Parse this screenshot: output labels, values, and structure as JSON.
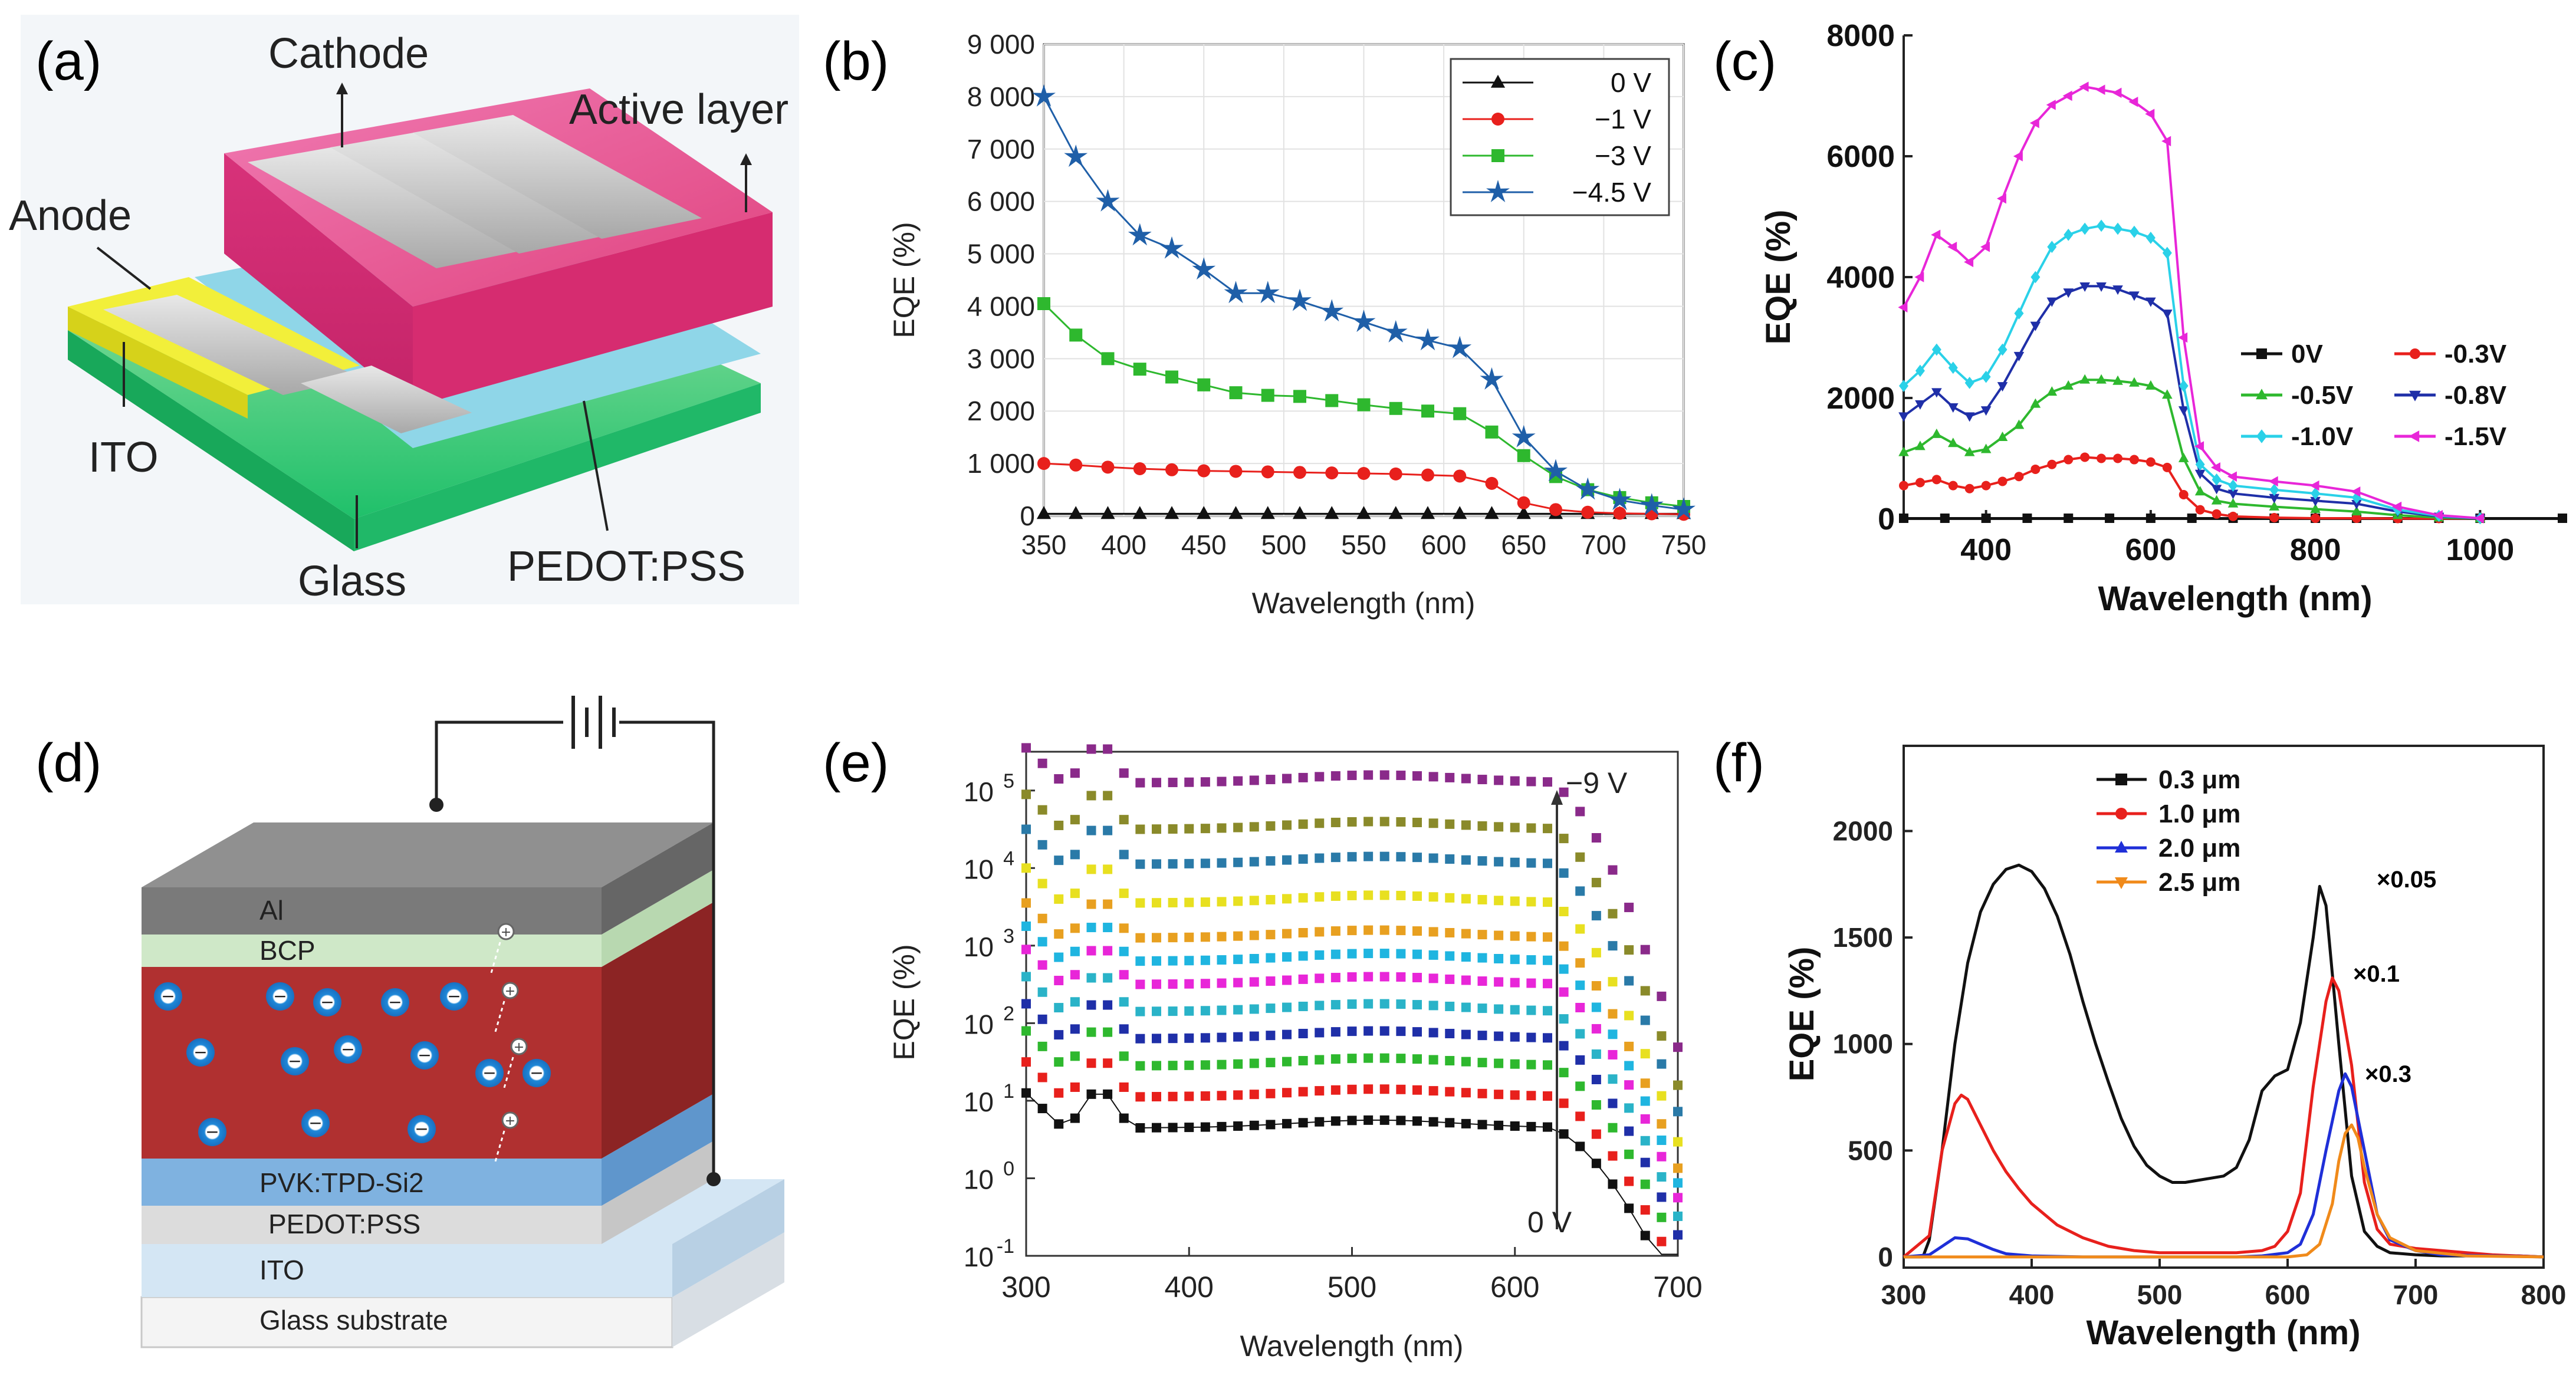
{
  "panel_labels": [
    "(a)",
    "(b)",
    "(c)",
    "(d)",
    "(e)",
    "(f)"
  ],
  "device_a": {
    "labels": [
      "Cathode",
      "Active layer",
      "Anode",
      "ITO",
      "Glass",
      "PEDOT:PSS"
    ]
  },
  "device_d": {
    "layers": [
      "Al",
      "BCP",
      "PVK:TPD-Si2",
      "PEDOT:PSS",
      "ITO",
      "Glass substrate"
    ],
    "minus_sign": "−",
    "plus_sign": "+"
  },
  "chart_data": [
    {
      "panel": "(b)",
      "type": "line",
      "xlabel": "Wavelength (nm)",
      "ylabel": "EQE (%)",
      "xlim": [
        350,
        750
      ],
      "ylim": [
        0,
        9000
      ],
      "xticks": [
        350,
        400,
        450,
        500,
        550,
        600,
        650,
        700,
        750
      ],
      "yticks": [
        0,
        1000,
        2000,
        3000,
        4000,
        5000,
        6000,
        7000,
        8000,
        9000
      ],
      "ytick_labels": [
        "0",
        "1 000",
        "2 000",
        "3 000",
        "4 000",
        "5 000",
        "6 000",
        "7 000",
        "8 000",
        "9 000"
      ],
      "legend_position": "top-right",
      "series": [
        {
          "name": "0 V",
          "color": "#111111",
          "marker": "triangle",
          "x": [
            350,
            370,
            390,
            410,
            430,
            450,
            470,
            490,
            510,
            530,
            550,
            570,
            590,
            610,
            630,
            650,
            670,
            690,
            710,
            730,
            750
          ],
          "y": [
            40,
            40,
            40,
            40,
            40,
            40,
            40,
            40,
            40,
            40,
            40,
            40,
            40,
            40,
            40,
            40,
            40,
            40,
            40,
            40,
            40
          ]
        },
        {
          "name": "−1 V",
          "color": "#e8201c",
          "marker": "circle",
          "x": [
            350,
            370,
            390,
            410,
            430,
            450,
            470,
            490,
            510,
            530,
            550,
            570,
            590,
            610,
            630,
            650,
            670,
            690,
            710,
            730,
            750
          ],
          "y": [
            1000,
            970,
            930,
            900,
            880,
            860,
            850,
            840,
            830,
            820,
            810,
            800,
            780,
            760,
            620,
            250,
            120,
            70,
            50,
            40,
            30
          ]
        },
        {
          "name": "−3 V",
          "color": "#2eb82e",
          "marker": "square",
          "x": [
            350,
            370,
            390,
            410,
            430,
            450,
            470,
            490,
            510,
            530,
            550,
            570,
            590,
            610,
            630,
            650,
            670,
            690,
            710,
            730,
            750
          ],
          "y": [
            4050,
            3450,
            3000,
            2800,
            2650,
            2500,
            2350,
            2300,
            2280,
            2200,
            2120,
            2050,
            2000,
            1950,
            1600,
            1150,
            750,
            500,
            350,
            250,
            180
          ]
        },
        {
          "name": "−4.5 V",
          "color": "#1f5fa8",
          "marker": "star",
          "x": [
            350,
            370,
            390,
            410,
            430,
            450,
            470,
            490,
            510,
            530,
            550,
            570,
            590,
            610,
            630,
            650,
            670,
            690,
            710,
            730,
            750
          ],
          "y": [
            8000,
            6850,
            6000,
            5350,
            5100,
            4700,
            4250,
            4250,
            4100,
            3900,
            3700,
            3500,
            3350,
            3200,
            2600,
            1500,
            850,
            500,
            300,
            200,
            120
          ]
        }
      ]
    },
    {
      "panel": "(c)",
      "type": "line",
      "xlabel": "Wavelength (nm)",
      "ylabel": "EQE (%)",
      "xlim": [
        300,
        1100
      ],
      "ylim": [
        0,
        8000
      ],
      "xticks": [
        400,
        600,
        800,
        1000
      ],
      "yticks": [
        0,
        2000,
        4000,
        6000,
        8000
      ],
      "legend_position": "right",
      "series": [
        {
          "name": "0V",
          "color": "#111111",
          "marker": "square",
          "x": [
            300,
            350,
            400,
            450,
            500,
            550,
            600,
            650,
            700,
            750,
            800,
            850,
            900,
            950,
            1000,
            1100
          ],
          "y": [
            10,
            10,
            10,
            10,
            10,
            10,
            10,
            10,
            10,
            10,
            10,
            10,
            10,
            10,
            10,
            10
          ]
        },
        {
          "name": "-0.3V",
          "color": "#e8201c",
          "marker": "circle",
          "x": [
            300,
            320,
            340,
            360,
            380,
            400,
            420,
            440,
            460,
            480,
            500,
            520,
            540,
            560,
            580,
            600,
            620,
            640,
            660,
            680,
            700,
            750,
            800,
            850,
            900,
            950,
            1000
          ],
          "y": [
            550,
            600,
            650,
            550,
            500,
            550,
            620,
            700,
            820,
            900,
            980,
            1020,
            1000,
            1000,
            980,
            940,
            850,
            400,
            150,
            80,
            40,
            20,
            10,
            10,
            5,
            5,
            5
          ]
        },
        {
          "name": "-0.5V",
          "color": "#2eb82e",
          "marker": "triangle",
          "x": [
            300,
            320,
            340,
            360,
            380,
            400,
            420,
            440,
            460,
            480,
            500,
            520,
            540,
            560,
            580,
            600,
            620,
            640,
            660,
            680,
            700,
            750,
            800,
            850,
            900,
            950,
            1000
          ],
          "y": [
            1100,
            1200,
            1400,
            1250,
            1100,
            1150,
            1350,
            1550,
            1900,
            2100,
            2200,
            2300,
            2300,
            2280,
            2250,
            2200,
            2050,
            1000,
            450,
            300,
            250,
            200,
            160,
            120,
            60,
            20,
            5
          ]
        },
        {
          "name": "-0.8V",
          "color": "#1f2fa8",
          "marker": "triangle-down",
          "x": [
            300,
            320,
            340,
            360,
            380,
            400,
            420,
            440,
            460,
            480,
            500,
            520,
            540,
            560,
            580,
            600,
            620,
            640,
            660,
            680,
            700,
            750,
            800,
            850,
            900,
            950,
            1000
          ],
          "y": [
            1700,
            1900,
            2100,
            1850,
            1700,
            1800,
            2200,
            2700,
            3200,
            3600,
            3750,
            3850,
            3850,
            3800,
            3700,
            3600,
            3400,
            1800,
            750,
            500,
            420,
            350,
            300,
            250,
            120,
            40,
            5
          ]
        },
        {
          "name": "-1.0V",
          "color": "#2ad1e8",
          "marker": "diamond",
          "x": [
            300,
            320,
            340,
            360,
            380,
            400,
            420,
            440,
            460,
            480,
            500,
            520,
            540,
            560,
            580,
            600,
            620,
            640,
            660,
            680,
            700,
            750,
            800,
            850,
            900,
            950,
            1000
          ],
          "y": [
            2200,
            2450,
            2800,
            2500,
            2250,
            2350,
            2800,
            3400,
            4000,
            4500,
            4700,
            4800,
            4850,
            4800,
            4750,
            4650,
            4400,
            2200,
            900,
            650,
            550,
            480,
            420,
            350,
            150,
            50,
            10
          ]
        },
        {
          "name": "-1.5V",
          "color": "#e826d8",
          "marker": "triangle-left",
          "x": [
            300,
            320,
            340,
            360,
            380,
            400,
            420,
            440,
            460,
            480,
            500,
            520,
            540,
            560,
            580,
            600,
            620,
            640,
            660,
            680,
            700,
            750,
            800,
            850,
            900,
            950,
            1000
          ],
          "y": [
            3500,
            4000,
            4700,
            4500,
            4250,
            4500,
            5300,
            6000,
            6550,
            6850,
            7000,
            7150,
            7100,
            7050,
            6900,
            6700,
            6250,
            3000,
            1200,
            850,
            700,
            620,
            550,
            450,
            200,
            60,
            10
          ]
        }
      ]
    },
    {
      "panel": "(e)",
      "type": "scatter",
      "xlabel": "Wavelength (nm)",
      "ylabel": "EQE (%)",
      "yscale": "log",
      "xlim": [
        300,
        700
      ],
      "ylim_log10": [
        -1,
        5.5
      ],
      "xticks": [
        300,
        400,
        500,
        600,
        700
      ],
      "yticks_log10": [
        -1,
        0,
        1,
        2,
        3,
        4,
        5
      ],
      "ytick_base": "10",
      "annotations": [
        "−9 V",
        "0 V"
      ],
      "levels_log10": [
        0.65,
        1.05,
        1.45,
        1.8,
        2.15,
        2.5,
        2.8,
        3.1,
        3.55,
        4.05,
        4.5,
        5.1
      ],
      "colors": [
        "#111111",
        "#e8201c",
        "#2eb82e",
        "#1f2fa8",
        "#2ab3c8",
        "#e826d8",
        "#1fb5e0",
        "#e8a020",
        "#e8e020",
        "#2a7aa8",
        "#8a8a2a",
        "#8a2a8a"
      ]
    },
    {
      "panel": "(f)",
      "type": "line",
      "xlabel": "Wavelength (nm)",
      "ylabel": "EQE (%)",
      "xlim": [
        300,
        800
      ],
      "ylim": [
        -50,
        2400
      ],
      "xticks": [
        300,
        400,
        500,
        600,
        700,
        800
      ],
      "yticks": [
        0,
        500,
        1000,
        1500,
        2000
      ],
      "legend_position": "top-left",
      "annotations": [
        {
          "text": "×0.05",
          "color": "#111111"
        },
        {
          "text": "×0.1",
          "color": "#e8201c"
        },
        {
          "text": "×0.3",
          "color": "#1f2fd8"
        }
      ],
      "series": [
        {
          "name": "0.3 μm",
          "color": "#111111",
          "x": [
            300,
            315,
            320,
            330,
            340,
            350,
            360,
            370,
            380,
            390,
            400,
            410,
            420,
            430,
            440,
            450,
            460,
            470,
            480,
            490,
            500,
            510,
            520,
            530,
            540,
            550,
            560,
            570,
            580,
            590,
            600,
            610,
            620,
            625,
            630,
            640,
            650,
            660,
            670,
            680,
            700,
            720,
            740,
            760,
            780,
            800
          ],
          "y": [
            0,
            0,
            80,
            500,
            1000,
            1380,
            1620,
            1750,
            1820,
            1840,
            1810,
            1730,
            1600,
            1420,
            1200,
            1000,
            820,
            650,
            520,
            430,
            380,
            350,
            350,
            360,
            370,
            380,
            420,
            550,
            780,
            850,
            880,
            1100,
            1500,
            1740,
            1650,
            1000,
            380,
            120,
            50,
            20,
            10,
            5,
            5,
            5,
            5,
            0
          ]
        },
        {
          "name": "1.0 μm",
          "color": "#e8201c",
          "x": [
            300,
            320,
            330,
            340,
            345,
            350,
            360,
            370,
            380,
            390,
            400,
            420,
            440,
            460,
            480,
            500,
            520,
            540,
            560,
            580,
            590,
            600,
            610,
            620,
            630,
            635,
            640,
            650,
            660,
            670,
            680,
            700,
            720,
            740,
            760,
            780,
            800
          ],
          "y": [
            0,
            100,
            500,
            720,
            760,
            740,
            620,
            500,
            400,
            320,
            250,
            150,
            90,
            50,
            30,
            20,
            20,
            20,
            20,
            30,
            50,
            120,
            300,
            800,
            1200,
            1310,
            1250,
            900,
            350,
            130,
            60,
            40,
            30,
            20,
            10,
            5,
            0
          ]
        },
        {
          "name": "2.0 μm",
          "color": "#1f2fd8",
          "x": [
            300,
            320,
            330,
            340,
            350,
            360,
            370,
            380,
            400,
            440,
            480,
            520,
            560,
            580,
            600,
            610,
            620,
            630,
            640,
            645,
            650,
            660,
            670,
            680,
            700,
            720,
            760,
            800
          ],
          "y": [
            0,
            10,
            50,
            90,
            85,
            60,
            35,
            15,
            5,
            0,
            0,
            0,
            0,
            5,
            20,
            60,
            200,
            500,
            780,
            860,
            800,
            500,
            200,
            80,
            30,
            10,
            5,
            0
          ]
        },
        {
          "name": "2.5 μm",
          "color": "#f08a1a",
          "x": [
            300,
            400,
            500,
            580,
            600,
            615,
            625,
            635,
            640,
            645,
            650,
            655,
            660,
            670,
            680,
            700,
            740,
            800
          ],
          "y": [
            0,
            0,
            0,
            0,
            0,
            10,
            60,
            250,
            450,
            580,
            620,
            560,
            420,
            200,
            90,
            30,
            5,
            0
          ]
        }
      ]
    }
  ]
}
